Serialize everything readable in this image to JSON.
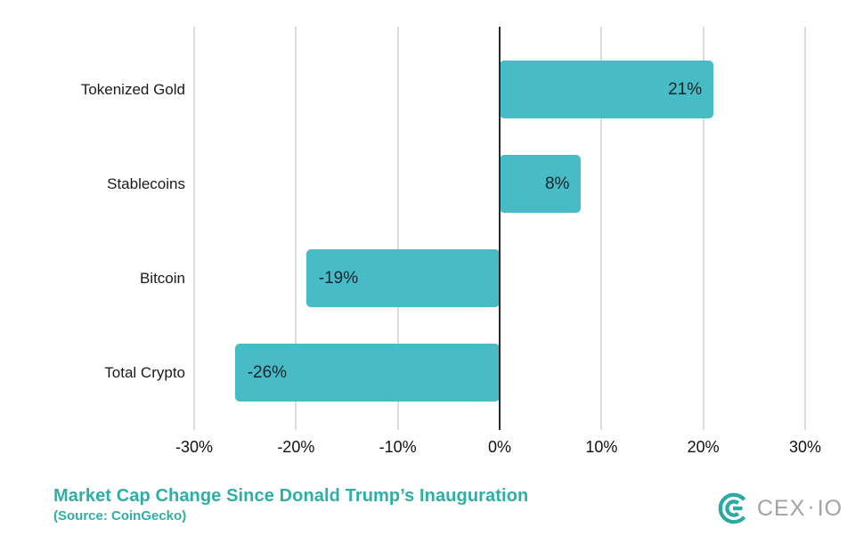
{
  "chart_data": {
    "type": "bar",
    "orientation": "horizontal",
    "title": "Market Cap Change Since Donald Trump’s Inauguration",
    "subtitle": "(Source: CoinGecko)",
    "categories": [
      "Tokenized Gold",
      "Stablecoins",
      "Bitcoin",
      "Total Crypto"
    ],
    "values": [
      21,
      8,
      -19,
      -26
    ],
    "value_labels": [
      "21%",
      "8%",
      "-19%",
      "-26%"
    ],
    "x_ticks": [
      {
        "value": -30,
        "label": "-30%"
      },
      {
        "value": -20,
        "label": "-20%"
      },
      {
        "value": -10,
        "label": "-10%"
      },
      {
        "value": 0,
        "label": "0%"
      },
      {
        "value": 10,
        "label": "10%"
      },
      {
        "value": 20,
        "label": "20%"
      },
      {
        "value": 30,
        "label": "30%"
      }
    ],
    "xlim": [
      -30,
      30
    ],
    "xlabel": "",
    "ylabel": "",
    "grid": true,
    "legend": false
  },
  "colors": {
    "bar": "#47BCC6",
    "value_label": "#14242C",
    "title": "#2EAFA6",
    "grid": "#DBDBDB",
    "zero_line": "#2B2B2B",
    "tick_label": "#111111",
    "logo_icon": "#2BA9A4",
    "logo_text": "#9EA4A8"
  },
  "logo": {
    "icon": "cexio-monogram-icon",
    "text_primary": "CEX",
    "separator": "·",
    "text_secondary": "IO"
  }
}
